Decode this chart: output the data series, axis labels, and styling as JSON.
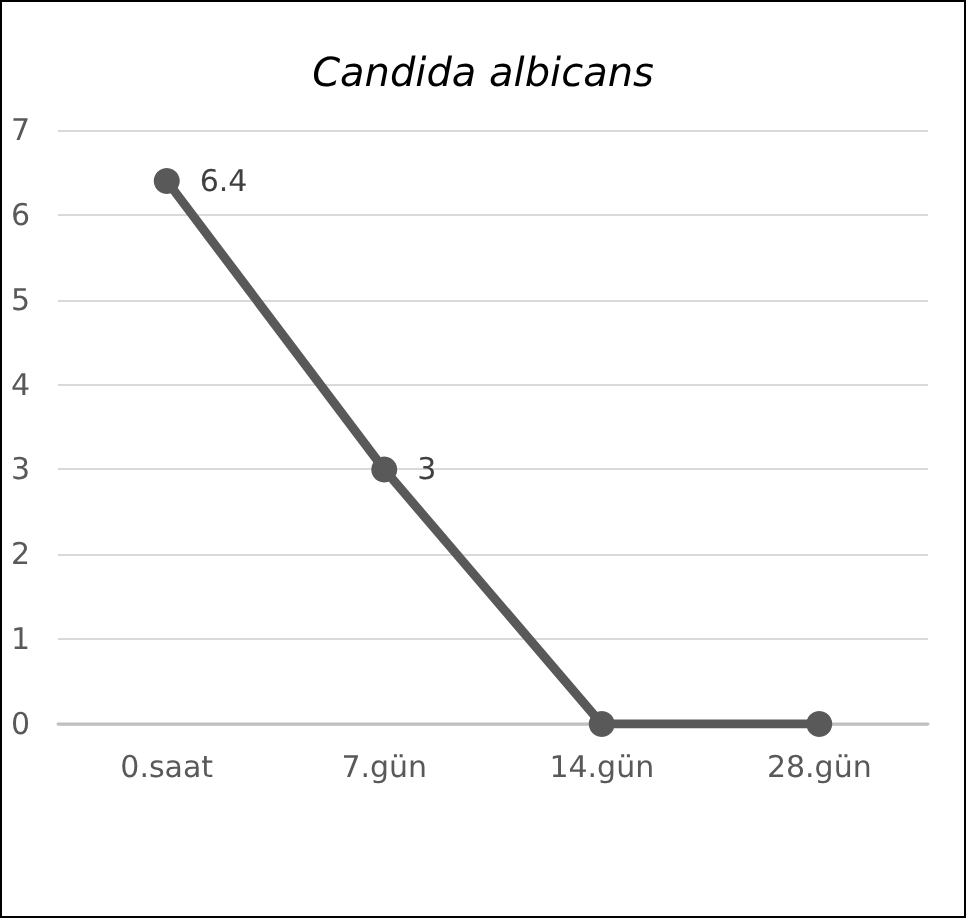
{
  "chart_data": {
    "type": "line",
    "title": "Candida albicans",
    "categories": [
      "0.saat",
      "7.gün",
      "14.gün",
      "28.gün"
    ],
    "series": [
      {
        "color": "#595959",
        "values": [
          6.4,
          3,
          0,
          0
        ],
        "value_labels": [
          "6.4",
          "3",
          null,
          null
        ]
      }
    ],
    "ylim": [
      0,
      7
    ],
    "yticks": [
      0,
      1,
      2,
      3,
      4,
      5,
      6,
      7
    ],
    "grid": "y",
    "marker": "circle",
    "line_style": "solid"
  }
}
